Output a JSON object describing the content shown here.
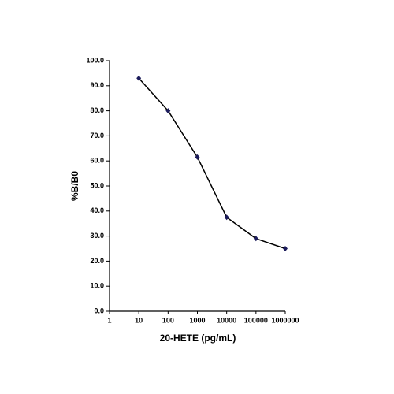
{
  "chart_data": {
    "type": "line",
    "x_label": "20-HETE (pg/mL)",
    "y_label": "%B/B0",
    "xscale": "log",
    "xlim": [
      1,
      1000000
    ],
    "xticks": [
      1,
      10,
      100,
      1000,
      10000,
      100000,
      1000000
    ],
    "ylim": [
      0,
      100
    ],
    "yticks": [
      {
        "value": 0,
        "label": "0.0"
      },
      {
        "value": 10,
        "label": "10.0"
      },
      {
        "value": 20,
        "label": "20.0"
      },
      {
        "value": 30,
        "label": "30.0"
      },
      {
        "value": 40,
        "label": "40.0"
      },
      {
        "value": 50,
        "label": "50.0"
      },
      {
        "value": 60,
        "label": "60.0"
      },
      {
        "value": 70,
        "label": "70.0"
      },
      {
        "value": 80,
        "label": "80.0"
      },
      {
        "value": 90,
        "label": "90.0"
      },
      {
        "value": 100,
        "label": "100.0"
      }
    ],
    "x": [
      10,
      100,
      1000,
      10000,
      100000,
      1000000
    ],
    "series": [
      {
        "color": "#1c1c5c",
        "values": [
          93,
          80,
          61.5,
          37.5,
          29,
          25
        ]
      }
    ]
  }
}
